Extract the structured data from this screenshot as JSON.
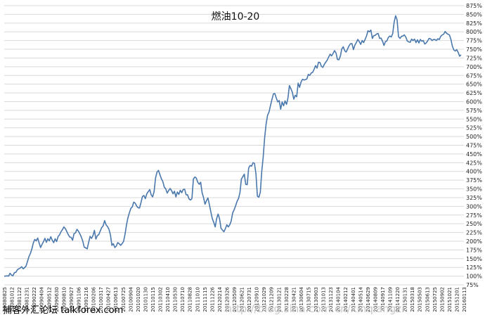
{
  "chart_data": {
    "type": "line",
    "title": "燃油10-20",
    "xlabel": "",
    "ylabel": "",
    "y_axis_position": "right",
    "ylim": [
      75,
      875
    ],
    "y_tick_step": 25,
    "y_tick_suffix": "%",
    "grid": "horizontal",
    "x_tick_labels": [
      "20080825",
      "20081012",
      "20081122",
      "20081231",
      "20090222",
      "20090404",
      "20090512",
      "20090630",
      "20090810",
      "20090927",
      "20091106",
      "20091216",
      "20100206",
      "20100317",
      "20100427",
      "20100613",
      "20100725",
      "20100904",
      "20101020",
      "20101130",
      "20110115",
      "20110302",
      "20110410",
      "20110530",
      "20110710",
      "20110828",
      "20111010",
      "20111115",
      "20111226",
      "20120214",
      "20120326",
      "20120509",
      "20120621",
      "20120731",
      "20120910",
      "20121029",
      "20121209",
      "20130121",
      "20130228",
      "20130421",
      "20130604",
      "20130715",
      "20130903",
      "20131013",
      "20131123",
      "20140104",
      "20140212",
      "20140401",
      "20140514",
      "20140629",
      "20140809",
      "20140917",
      "20141109",
      "20141220",
      "20150131",
      "20150318",
      "20150503",
      "20150613",
      "20150725",
      "20150902",
      "20151021",
      "20151201",
      "20160113"
    ],
    "series": [
      {
        "color": "#4a78ad",
        "values": [
          100,
          100,
          101,
          100,
          108,
          103,
          101,
          110,
          111,
          118,
          121,
          123,
          127,
          121,
          124,
          129,
          142,
          156,
          165,
          178,
          195,
          205,
          201,
          209,
          195,
          182,
          191,
          199,
          208,
          197,
          207,
          201,
          213,
          203,
          196,
          207,
          199,
          213,
          218,
          227,
          233,
          241,
          236,
          228,
          219,
          212,
          211,
          203,
          222,
          224,
          234,
          229,
          221,
          212,
          200,
          183,
          181,
          178,
          196,
          214,
          208,
          216,
          231,
          206,
          216,
          219,
          229,
          239,
          244,
          259,
          247,
          242,
          234,
          218,
          188,
          193,
          182,
          186,
          196,
          193,
          188,
          193,
          199,
          219,
          246,
          267,
          281,
          294,
          298,
          312,
          309,
          301,
          296,
          295,
          311,
          328,
          331,
          322,
          336,
          342,
          348,
          333,
          327,
          342,
          381,
          398,
          403,
          391,
          379,
          371,
          355,
          350,
          338,
          345,
          351,
          345,
          336,
          343,
          327,
          341,
          334,
          346,
          339,
          348,
          349,
          333,
          333,
          321,
          318,
          322,
          378,
          384,
          381,
          369,
          363,
          369,
          339,
          325,
          306,
          316,
          324,
          305,
          284,
          265,
          254,
          241,
          265,
          278,
          264,
          237,
          232,
          227,
          236,
          247,
          241,
          247,
          258,
          281,
          290,
          301,
          314,
          322,
          339,
          378,
          385,
          392,
          363,
          362,
          410,
          417,
          415,
          425,
          423,
          393,
          329,
          326,
          340,
          400,
          442,
          497,
          536,
          561,
          570,
          589,
          606,
          622,
          623,
          610,
          599,
          603,
          578,
          599,
          588,
          602,
          592,
          610,
          646,
          637,
          627,
          607,
          618,
          614,
          653,
          641,
          656,
          664,
          662,
          663,
          665,
          678,
          675,
          682,
          684,
          693,
          703,
          696,
          713,
          712,
          701,
          698,
          707,
          713,
          719,
          728,
          736,
          731,
          738,
          746,
          740,
          721,
          720,
          730,
          751,
          757,
          746,
          742,
          751,
          760,
          766,
          766,
          749,
          762,
          769,
          778,
          772,
          764,
          775,
          769,
          778,
          788,
          803,
          800,
          805,
          781,
          789,
          790,
          794,
          795,
          781,
          782,
          773,
          761,
          772,
          774,
          784,
          788,
          785,
          795,
          828,
          846,
          834,
          786,
          781,
          787,
          788,
          791,
          785,
          774,
          771,
          770,
          779,
          775,
          779,
          769,
          777,
          768,
          778,
          773,
          775,
          765,
          768,
          774,
          781,
          780,
          775,
          778,
          778,
          775,
          780,
          778,
          787,
          791,
          793,
          801,
          796,
          793,
          791,
          778,
          759,
          748,
          745,
          749,
          741,
          730,
          734
        ]
      }
    ],
    "watermark_left": "捕客外汇论坛 talkforex.com",
    "watermark_right": "http://blog.sina.com.cn/xinqiangzi"
  }
}
